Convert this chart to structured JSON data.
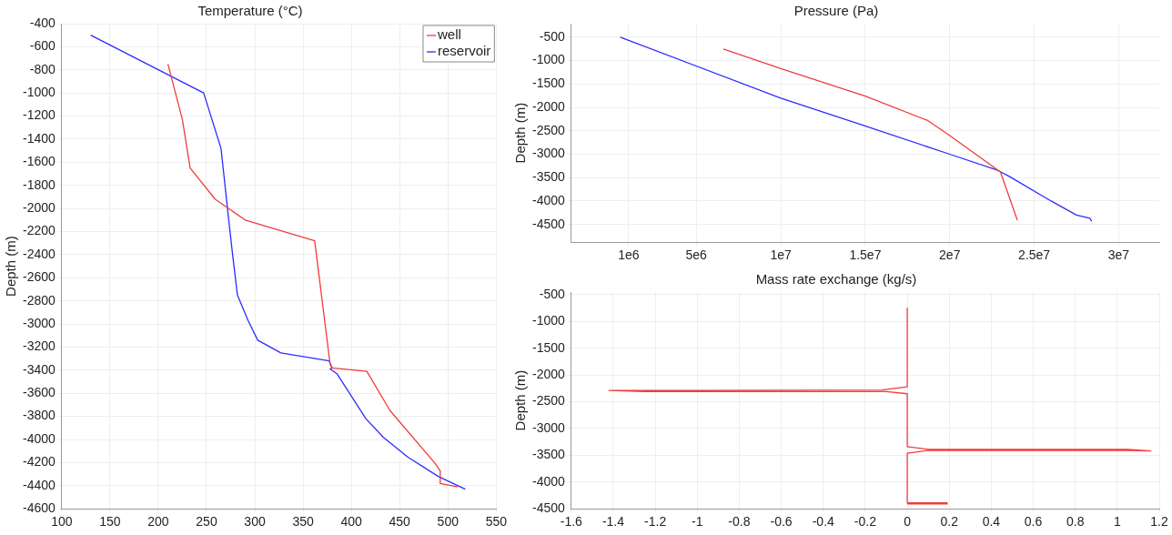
{
  "chart_data": [
    {
      "type": "line",
      "title": "Temperature (°C)",
      "ylabel": "Depth (m)",
      "xlim": [
        100,
        550
      ],
      "xticks": [
        100,
        150,
        200,
        250,
        300,
        350,
        400,
        450,
        500,
        550
      ],
      "ylim": [
        -4600,
        -400
      ],
      "yticks": [
        -4600,
        -4400,
        -4200,
        -4000,
        -3800,
        -3600,
        -3400,
        -3200,
        -3000,
        -2800,
        -2600,
        -2400,
        -2200,
        -2000,
        -1800,
        -1600,
        -1400,
        -1200,
        -1000,
        -800,
        -600,
        -400
      ],
      "grid": true,
      "legend": "top right",
      "series": [
        {
          "name": "well",
          "color": "#f03c3c",
          "x": [
            210,
            225,
            233,
            259,
            290,
            362,
            378,
            380,
            416,
            440,
            486,
            492,
            492,
            510
          ],
          "values": [
            -750,
            -1230,
            -1650,
            -1920,
            -2100,
            -2280,
            -3350,
            -3380,
            -3410,
            -3750,
            -4200,
            -4270,
            -4380,
            -4410
          ]
        },
        {
          "name": "reservoir",
          "color": "#2c2cff",
          "x": [
            130,
            247,
            265,
            273,
            277,
            282,
            293,
            303,
            327,
            377,
            380,
            378,
            385,
            395,
            415,
            433,
            458,
            490,
            518
          ],
          "values": [
            -500,
            -1000,
            -1480,
            -2100,
            -2400,
            -2750,
            -2970,
            -3140,
            -3250,
            -3320,
            -3380,
            -3390,
            -3430,
            -3560,
            -3820,
            -3980,
            -4150,
            -4320,
            -4430
          ]
        }
      ]
    },
    {
      "type": "line",
      "title": "Pressure (Pa)",
      "ylabel": "Depth (m)",
      "xlim": [
        -2400000,
        32400000
      ],
      "xticks": [
        {
          "value": 1000000,
          "label": "1e6"
        },
        {
          "value": 5000000,
          "label": "5e6"
        },
        {
          "value": 10000000,
          "label": "1e7"
        },
        {
          "value": 15000000,
          "label": "1.5e7"
        },
        {
          "value": 20000000,
          "label": "2e7"
        },
        {
          "value": 25000000,
          "label": "2.5e7"
        },
        {
          "value": 30000000,
          "label": "3e7"
        }
      ],
      "ylim": [
        -4880,
        -210
      ],
      "yticks": [
        -4500,
        -4000,
        -3500,
        -3000,
        -2500,
        -2000,
        -1500,
        -1000,
        -500
      ],
      "grid": true,
      "series": [
        {
          "color": "#f03c3c",
          "x": [
            6600000,
            10000000,
            15000000,
            18700000,
            20000000,
            23000000,
            24000000
          ],
          "values": [
            -750,
            -1170,
            -1760,
            -2280,
            -2600,
            -3380,
            -4410
          ]
        },
        {
          "color": "#2c2cff",
          "x": [
            500000,
            10000000,
            14700000,
            20000000,
            22800000,
            23500000,
            26000000,
            27500000,
            28300000,
            28400000
          ],
          "values": [
            -500,
            -1800,
            -2360,
            -3000,
            -3340,
            -3470,
            -4000,
            -4300,
            -4370,
            -4430
          ]
        }
      ]
    },
    {
      "type": "line",
      "title": "Mass rate exchange (kg/s)",
      "ylabel": "Depth (m)",
      "xlim": [
        -1.6,
        1.2
      ],
      "xticks": [
        -1.6,
        -1.4,
        -1.2,
        -1,
        -0.8,
        -0.6,
        -0.4,
        -0.2,
        0,
        0.2,
        0.4,
        0.6,
        0.8,
        1,
        1.2
      ],
      "ylim": [
        -4500,
        -450
      ],
      "yticks": [
        -4500,
        -4000,
        -3500,
        -3000,
        -2500,
        -2000,
        -1500,
        -1000,
        -500
      ],
      "grid": true,
      "series": [
        {
          "color": "#f03c3c",
          "x": [
            0,
            0,
            -0.12,
            -1.42,
            -1.25,
            -0.1,
            0,
            0,
            0.1,
            1.05,
            1.16,
            1.05,
            0.1,
            0,
            0,
            0.19,
            0.19,
            0
          ],
          "values": [
            -750,
            -2220,
            -2280,
            -2290,
            -2310,
            -2310,
            -2350,
            -3340,
            -3390,
            -3390,
            -3420,
            -3410,
            -3410,
            -3460,
            -4390,
            -4390,
            -4410,
            -4410
          ]
        }
      ]
    }
  ]
}
